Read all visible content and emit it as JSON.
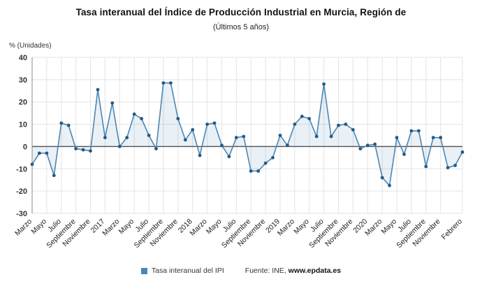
{
  "chart_data": {
    "type": "line",
    "title": "Tasa interanual del Índice de Producción Industrial en Murcia, Región de",
    "subtitle": "(Últimos 5 años)",
    "ylabel": "% (Unidades)",
    "ylim": [
      -30,
      40
    ],
    "y_ticks": [
      40,
      30,
      20,
      10,
      0,
      -10,
      -20,
      -30
    ],
    "grid": true,
    "legend_position": "bottom",
    "x_tick_labels": [
      "Marzo",
      "Mayo",
      "Julio",
      "Septiembre",
      "Noviembre",
      "2017",
      "Marzo",
      "Mayo",
      "Julio",
      "Septiembre",
      "Noviembre",
      "2018",
      "Marzo",
      "Mayo",
      "Julio",
      "Septiembre",
      "Noviembre",
      "2019",
      "Marzo",
      "Mayo",
      "Julio",
      "Septiembre",
      "Noviembre",
      "2020",
      "Marzo",
      "Mayo",
      "Julio",
      "Septiembre",
      "Noviembre",
      "Febrero"
    ],
    "x_tick_indices": [
      0,
      2,
      4,
      6,
      8,
      10,
      12,
      14,
      16,
      18,
      20,
      22,
      24,
      26,
      28,
      30,
      32,
      34,
      36,
      38,
      40,
      42,
      44,
      46,
      48,
      50,
      52,
      54,
      56,
      59
    ],
    "x": [
      "2016-03",
      "2016-04",
      "2016-05",
      "2016-06",
      "2016-07",
      "2016-08",
      "2016-09",
      "2016-10",
      "2016-11",
      "2016-12",
      "2017-01",
      "2017-02",
      "2017-03",
      "2017-04",
      "2017-05",
      "2017-06",
      "2017-07",
      "2017-08",
      "2017-09",
      "2017-10",
      "2017-11",
      "2017-12",
      "2018-01",
      "2018-02",
      "2018-03",
      "2018-04",
      "2018-05",
      "2018-06",
      "2018-07",
      "2018-08",
      "2018-09",
      "2018-10",
      "2018-11",
      "2018-12",
      "2019-01",
      "2019-02",
      "2019-03",
      "2019-04",
      "2019-05",
      "2019-06",
      "2019-07",
      "2019-08",
      "2019-09",
      "2019-10",
      "2019-11",
      "2019-12",
      "2020-01",
      "2020-02",
      "2020-03",
      "2020-04",
      "2020-05",
      "2020-06",
      "2020-07",
      "2020-08",
      "2020-09",
      "2020-10",
      "2020-11",
      "2020-12",
      "2021-01",
      "2021-02"
    ],
    "series": [
      {
        "name": "Tasa interanual del IPI",
        "color": "#4b86b4",
        "marker_color": "#235a83",
        "values": [
          -8,
          -3,
          -3,
          -13,
          10.5,
          9.5,
          -1,
          -1.5,
          -2,
          25.5,
          4,
          19.5,
          0,
          4,
          14.5,
          12.5,
          5,
          -1,
          28.5,
          28.5,
          12.5,
          3,
          7.5,
          -4,
          10,
          10.5,
          0.5,
          -4.5,
          4,
          4.5,
          -11,
          -11,
          -7.5,
          -5,
          5,
          0.5,
          10,
          13.5,
          12.5,
          4.5,
          28,
          4.5,
          9.5,
          10,
          7.5,
          -1,
          0.5,
          1,
          -14,
          -17.5,
          4,
          -3.5,
          7,
          7,
          -9,
          4,
          4,
          -9.5,
          -8.5,
          -2.5
        ]
      }
    ],
    "colors": {
      "gridline": "#e3e3e3",
      "zero_line": "#4d4d4d",
      "axis_line": "#8a8a8a",
      "area_fill": "#4b86b4"
    },
    "source_prefix": "Fuente: INE,",
    "source_site": "www.epdata.es"
  }
}
